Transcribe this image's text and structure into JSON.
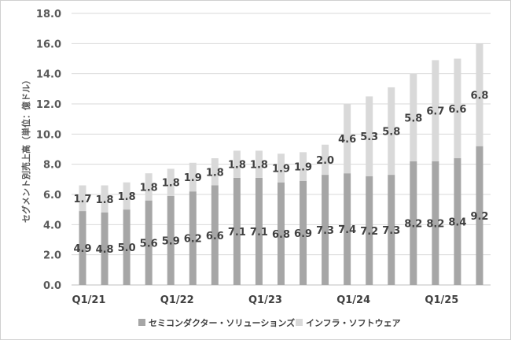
{
  "chart_data": {
    "type": "bar",
    "stacked": true,
    "ylabel": "セグメント別売上高（単位：億ドル）",
    "ylim": [
      0,
      18
    ],
    "yticks": [
      "0.0",
      "2.0",
      "4.0",
      "6.0",
      "8.0",
      "10.0",
      "12.0",
      "14.0",
      "16.0",
      "18.0"
    ],
    "x_tick_labels": [
      {
        "index": 0,
        "label": "Q1/21"
      },
      {
        "index": 4,
        "label": "Q1/22"
      },
      {
        "index": 8,
        "label": "Q1/23"
      },
      {
        "index": 12,
        "label": "Q1/24"
      },
      {
        "index": 16,
        "label": "Q1/25"
      }
    ],
    "grid": true,
    "legend_position": "bottom",
    "series": [
      {
        "name": "セミコンダクター・ソリューションズ",
        "color": "#a6a6a6",
        "values": [
          4.9,
          4.8,
          5.0,
          5.6,
          5.9,
          6.2,
          6.6,
          7.1,
          7.1,
          6.8,
          6.9,
          7.3,
          7.4,
          7.2,
          7.3,
          8.2,
          8.2,
          8.4,
          9.2
        ],
        "labels": [
          "4.9",
          "4.8",
          "5.0",
          "5.6",
          "5.9",
          "6.2",
          "6.6",
          "7.1",
          "7.1",
          "6.8",
          "6.9",
          "7.3",
          "7.4",
          "7.2",
          "7.3",
          "8.2",
          "8.2",
          "8.4",
          "9.2"
        ]
      },
      {
        "name": "インフラ・ソフトウェア",
        "color": "#d9d9d9",
        "values": [
          1.7,
          1.8,
          1.8,
          1.8,
          1.8,
          1.9,
          1.8,
          1.8,
          1.8,
          1.9,
          1.9,
          2.0,
          4.6,
          5.3,
          5.8,
          5.8,
          6.7,
          6.6,
          6.8
        ],
        "labels": [
          "1.7",
          "1.8",
          "1.8",
          "1.8",
          "1.8",
          "1.9",
          "1.8",
          "1.8",
          "1.8",
          "1.9",
          "1.9",
          "2.0",
          "4.6",
          "5.3",
          "5.8",
          "5.8",
          "6.7",
          "6.6",
          "6.8"
        ]
      }
    ]
  }
}
